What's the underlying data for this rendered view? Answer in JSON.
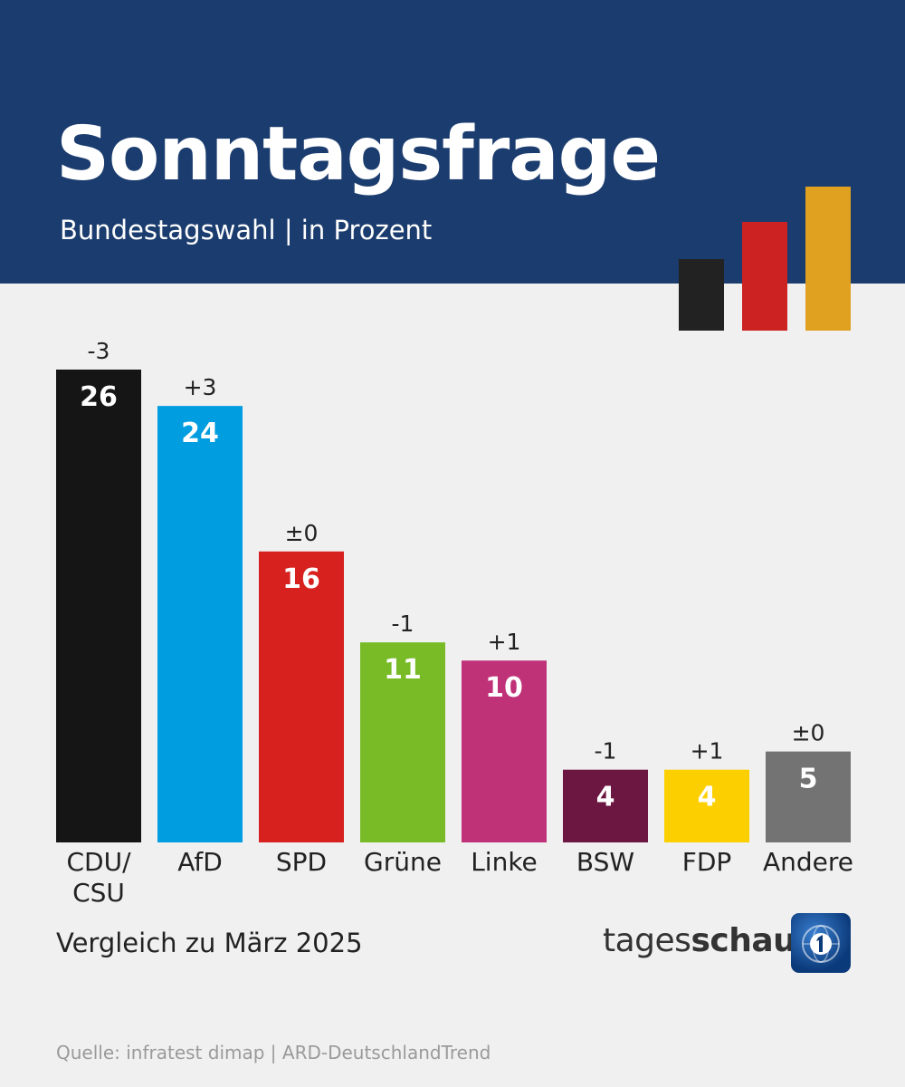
{
  "header": {
    "title": "Sonntagsfrage",
    "subtitle": "Bundestagswahl | in Prozent"
  },
  "flag_colors": [
    "#222222",
    "#cc2222",
    "#e0a020"
  ],
  "chart_data": {
    "type": "bar",
    "title": "Sonntagsfrage",
    "subtitle": "Bundestagswahl | in Prozent",
    "categories": [
      [
        "CDU/",
        "CSU"
      ],
      [
        "AfD"
      ],
      [
        "SPD"
      ],
      [
        "Grüne"
      ],
      [
        "Linke"
      ],
      [
        "BSW"
      ],
      [
        "FDP"
      ],
      [
        "Andere"
      ]
    ],
    "values": [
      26,
      24,
      16,
      11,
      10,
      4,
      4,
      5
    ],
    "changes": [
      "-3",
      "+3",
      "±0",
      "-1",
      "+1",
      "-1",
      "+1",
      "±0"
    ],
    "colors": [
      "#151515",
      "#009ee0",
      "#d7211f",
      "#78bb27",
      "#bf3278",
      "#6c1742",
      "#fcd000",
      "#737373"
    ],
    "value_label_colors": [
      "#ffffff",
      "#ffffff",
      "#ffffff",
      "#ffffff",
      "#ffffff",
      "#ffffff",
      "#ffffff",
      "#ffffff"
    ],
    "xlabel": "",
    "ylabel": "",
    "ylim": [
      0,
      26
    ],
    "grid": false,
    "comparison_note": "Vergleich zu März 2025"
  },
  "footer": {
    "note": "Vergleich zu März 2025",
    "source": "Quelle: infratest dimap | ARD-DeutschlandTrend",
    "brand_part1": "tages",
    "brand_part2": "schau"
  }
}
